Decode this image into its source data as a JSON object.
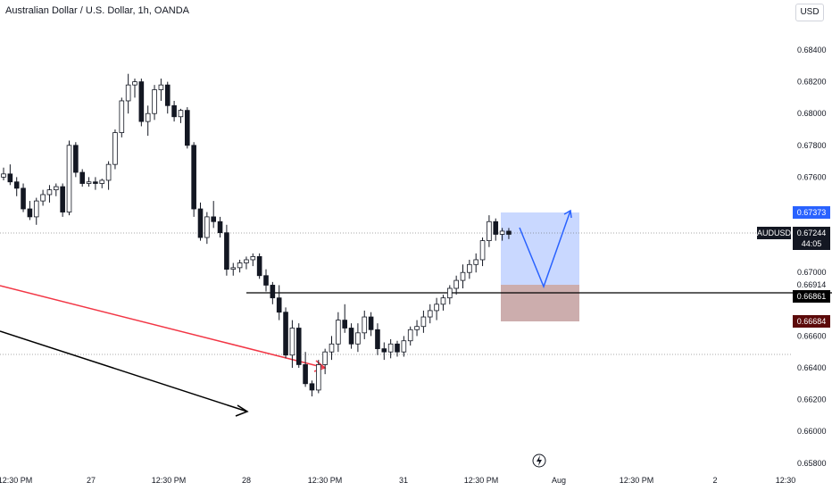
{
  "header": {
    "title": "Australian Dollar / U.S. Dollar, 1h, OANDA",
    "currency": "USD"
  },
  "chart_data": {
    "type": "candlestick",
    "symbol": "AUDUSD",
    "price_axis": [
      "0.68400",
      "0.68200",
      "0.68000",
      "0.67800",
      "0.67600",
      "0.67000",
      "0.66600",
      "0.66400",
      "0.66200",
      "0.66000",
      "0.65800"
    ],
    "time_axis": [
      "12:30 PM",
      "27",
      "12:30 PM",
      "28",
      "12:30 PM",
      "31",
      "12:30 PM",
      "Aug",
      "12:30 PM",
      "2",
      "12:30"
    ],
    "last_price": "0.67244",
    "countdown": "44:05",
    "levels": {
      "target": "0.67373",
      "mid": "0.66914",
      "entry": "0.66861",
      "stop": "0.66684"
    },
    "candles": [
      [
        0.676,
        0.6766,
        0.6758,
        0.6762
      ],
      [
        0.6762,
        0.6768,
        0.6755,
        0.6757
      ],
      [
        0.6757,
        0.676,
        0.6748,
        0.6753
      ],
      [
        0.6753,
        0.6756,
        0.6738,
        0.674
      ],
      [
        0.674,
        0.6745,
        0.6733,
        0.6735
      ],
      [
        0.6735,
        0.6747,
        0.673,
        0.6745
      ],
      [
        0.6745,
        0.6752,
        0.6742,
        0.6749
      ],
      [
        0.6749,
        0.6755,
        0.6744,
        0.6752
      ],
      [
        0.6752,
        0.6756,
        0.6748,
        0.6754
      ],
      [
        0.6754,
        0.6756,
        0.6735,
        0.6738
      ],
      [
        0.6738,
        0.6783,
        0.6736,
        0.678
      ],
      [
        0.678,
        0.6782,
        0.676,
        0.6763
      ],
      [
        0.6763,
        0.6765,
        0.6754,
        0.6756
      ],
      [
        0.6756,
        0.676,
        0.6754,
        0.6757
      ],
      [
        0.6757,
        0.676,
        0.6752,
        0.6756
      ],
      [
        0.6756,
        0.6759,
        0.6753,
        0.6758
      ],
      [
        0.6758,
        0.677,
        0.6752,
        0.6768
      ],
      [
        0.6768,
        0.679,
        0.6765,
        0.6788
      ],
      [
        0.6788,
        0.681,
        0.6785,
        0.6808
      ],
      [
        0.6808,
        0.6825,
        0.68,
        0.6818
      ],
      [
        0.6818,
        0.6822,
        0.681,
        0.682
      ],
      [
        0.682,
        0.6822,
        0.6792,
        0.6795
      ],
      [
        0.6795,
        0.6805,
        0.6786,
        0.68
      ],
      [
        0.68,
        0.6818,
        0.6796,
        0.6815
      ],
      [
        0.6815,
        0.6822,
        0.6808,
        0.6818
      ],
      [
        0.6818,
        0.682,
        0.68,
        0.6805
      ],
      [
        0.6805,
        0.6808,
        0.6795,
        0.6798
      ],
      [
        0.6798,
        0.6803,
        0.6794,
        0.6802
      ],
      [
        0.6802,
        0.6804,
        0.6778,
        0.678
      ],
      [
        0.678,
        0.6782,
        0.6735,
        0.674
      ],
      [
        0.674,
        0.6744,
        0.672,
        0.6722
      ],
      [
        0.6722,
        0.6738,
        0.6718,
        0.6735
      ],
      [
        0.6735,
        0.6745,
        0.6728,
        0.6732
      ],
      [
        0.6732,
        0.6735,
        0.6722,
        0.6725
      ],
      [
        0.6725,
        0.673,
        0.6698,
        0.6702
      ],
      [
        0.6702,
        0.6706,
        0.6698,
        0.6703
      ],
      [
        0.6703,
        0.6708,
        0.67,
        0.6706
      ],
      [
        0.6706,
        0.671,
        0.6702,
        0.6708
      ],
      [
        0.6708,
        0.6712,
        0.6704,
        0.671
      ],
      [
        0.671,
        0.6712,
        0.6696,
        0.6698
      ],
      [
        0.6698,
        0.6702,
        0.6688,
        0.6692
      ],
      [
        0.6692,
        0.6694,
        0.668,
        0.6684
      ],
      [
        0.6684,
        0.6692,
        0.667,
        0.6675
      ],
      [
        0.6675,
        0.6678,
        0.6646,
        0.6648
      ],
      [
        0.6648,
        0.667,
        0.664,
        0.6665
      ],
      [
        0.6665,
        0.6668,
        0.664,
        0.6642
      ],
      [
        0.6642,
        0.665,
        0.6628,
        0.663
      ],
      [
        0.663,
        0.6632,
        0.6622,
        0.6626
      ],
      [
        0.6626,
        0.6645,
        0.6624,
        0.6642
      ],
      [
        0.6642,
        0.6652,
        0.6636,
        0.665
      ],
      [
        0.665,
        0.666,
        0.6645,
        0.6655
      ],
      [
        0.6655,
        0.6675,
        0.665,
        0.667
      ],
      [
        0.667,
        0.668,
        0.6662,
        0.6665
      ],
      [
        0.6665,
        0.6668,
        0.6652,
        0.6655
      ],
      [
        0.6655,
        0.6668,
        0.665,
        0.6662
      ],
      [
        0.6662,
        0.6676,
        0.6658,
        0.6672
      ],
      [
        0.6672,
        0.6675,
        0.666,
        0.6664
      ],
      [
        0.6664,
        0.6668,
        0.6648,
        0.6652
      ],
      [
        0.6652,
        0.6656,
        0.6645,
        0.665
      ],
      [
        0.665,
        0.6658,
        0.6646,
        0.6655
      ],
      [
        0.6655,
        0.6657,
        0.6647,
        0.665
      ],
      [
        0.665,
        0.666,
        0.6647,
        0.6657
      ],
      [
        0.6657,
        0.6666,
        0.6654,
        0.6664
      ],
      [
        0.6664,
        0.667,
        0.666,
        0.6666
      ],
      [
        0.6666,
        0.6676,
        0.6662,
        0.6672
      ],
      [
        0.6672,
        0.668,
        0.6668,
        0.6676
      ],
      [
        0.6676,
        0.6684,
        0.667,
        0.668
      ],
      [
        0.668,
        0.6686,
        0.6676,
        0.6684
      ],
      [
        0.6684,
        0.6692,
        0.668,
        0.669
      ],
      [
        0.669,
        0.6698,
        0.6686,
        0.6695
      ],
      [
        0.6695,
        0.6705,
        0.669,
        0.67
      ],
      [
        0.67,
        0.6708,
        0.6696,
        0.6705
      ],
      [
        0.6705,
        0.6712,
        0.67,
        0.6708
      ],
      [
        0.6708,
        0.6722,
        0.6704,
        0.672
      ],
      [
        0.672,
        0.6736,
        0.6716,
        0.6732
      ],
      [
        0.6732,
        0.6734,
        0.672,
        0.6724
      ],
      [
        0.6724,
        0.6728,
        0.672,
        0.6726
      ],
      [
        0.6726,
        0.6728,
        0.6721,
        0.6724
      ]
    ]
  }
}
